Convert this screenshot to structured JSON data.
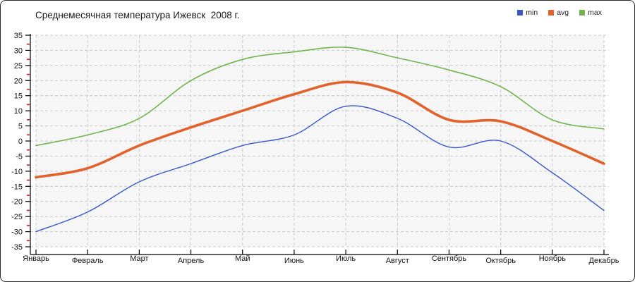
{
  "chart_data": {
    "type": "line",
    "title": "Среднемесячная температура Ижевск  2008 г.",
    "categories": [
      "Январь",
      "Февраль",
      "Март",
      "Апрель",
      "Май",
      "Июнь",
      "Июль",
      "Август",
      "Сентябрь",
      "Октябрь",
      "Ноябрь",
      "Декабрь"
    ],
    "series": [
      {
        "name": "min",
        "color": "#3a57c8",
        "width": 1.4,
        "values": [
          -30,
          -23.5,
          -13.5,
          -7.5,
          -1.5,
          2,
          11.5,
          7.5,
          -2,
          0,
          -10.5,
          -23
        ]
      },
      {
        "name": "avg",
        "color": "#e2622c",
        "width": 3.6,
        "values": [
          -12,
          -9,
          -1.5,
          4.5,
          10,
          15.5,
          19.5,
          16,
          7,
          6.5,
          0,
          -7.5
        ]
      },
      {
        "name": "max",
        "color": "#71b44f",
        "width": 1.6,
        "values": [
          -1.5,
          2,
          7.5,
          20,
          27,
          29.5,
          31,
          27.5,
          23.5,
          18,
          7,
          4
        ]
      }
    ],
    "xlabel": "",
    "ylabel": "",
    "ylim": [
      -35,
      35
    ],
    "ytick_step": 5,
    "grid": "dashed, both axes",
    "grid_color": "#c9c9c9",
    "plot_bg": "#f6f6f6",
    "axis_color": "#000000",
    "minor_tick_color": "#cc2222",
    "legend_position": "top-right"
  }
}
